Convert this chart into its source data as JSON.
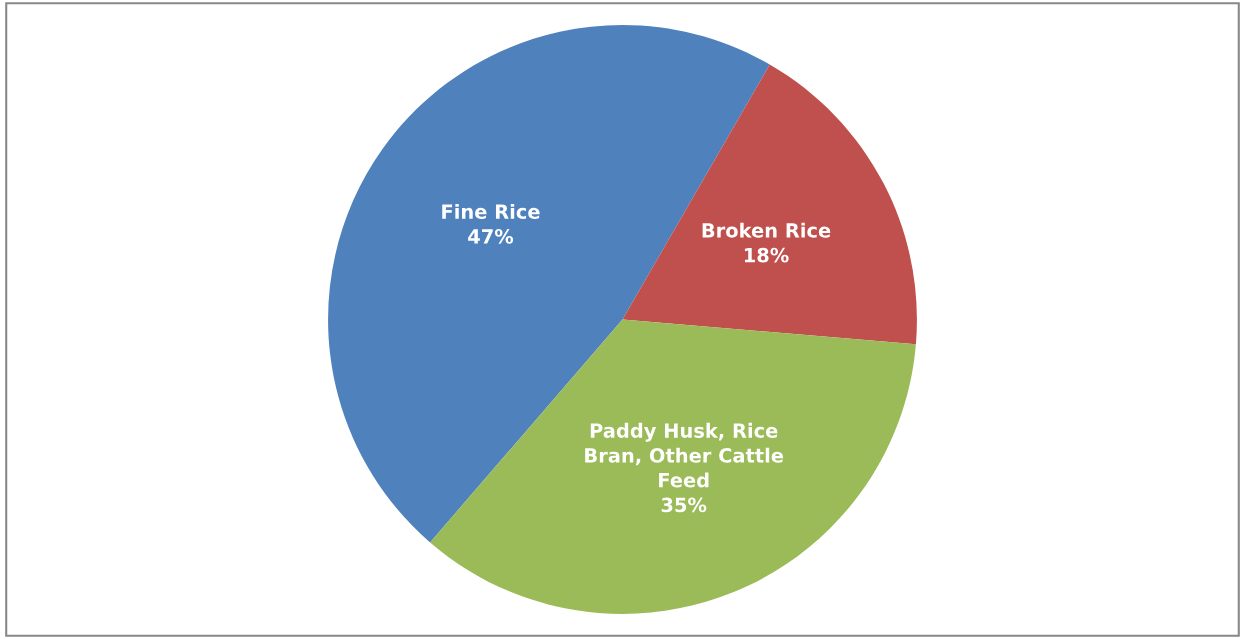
{
  "chart_data": {
    "type": "pie",
    "categories": [
      "Fine Rice",
      "Broken Rice",
      "Paddy Husk, Rice Bran, Other Cattle Feed"
    ],
    "values": [
      47,
      18,
      35
    ],
    "colors": [
      "#4f81bd",
      "#c0504d",
      "#9bbb59"
    ],
    "value_labels": [
      "47%",
      "18%",
      "35%"
    ]
  }
}
